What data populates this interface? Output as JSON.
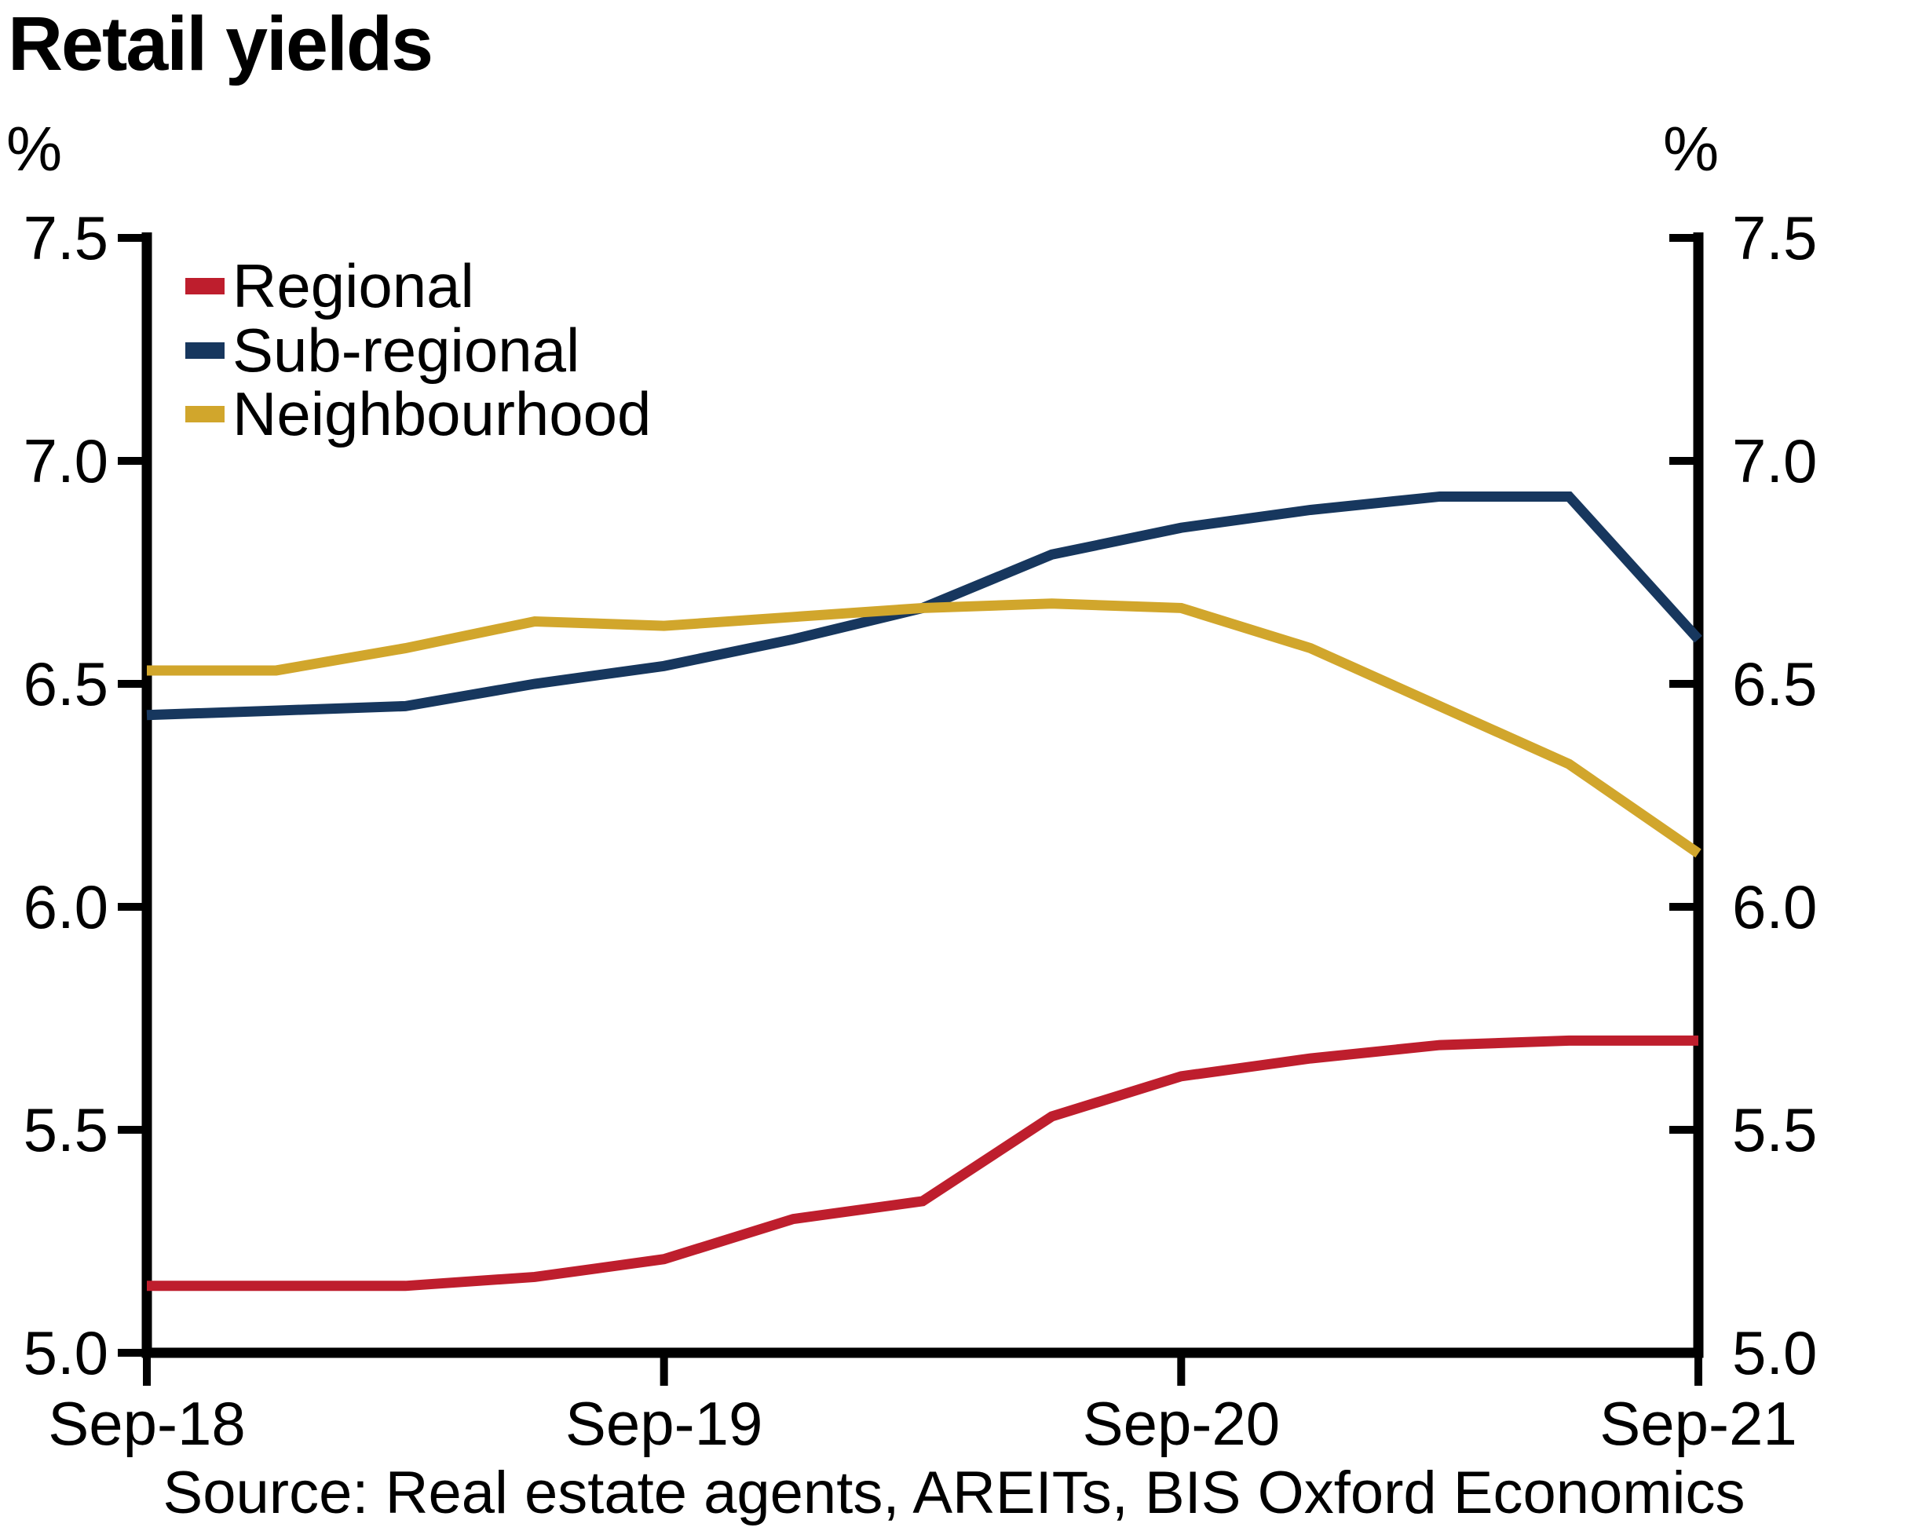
{
  "title": "Retail yields",
  "axis_units": {
    "left": "%",
    "right": "%"
  },
  "legend": [
    {
      "label": "Regional",
      "color": "#BE1E2D"
    },
    {
      "label": "Sub-regional",
      "color": "#17375E"
    },
    {
      "label": "Neighbourhood",
      "color": "#D1A62C"
    }
  ],
  "source": "Source: Real estate agents, AREITs, BIS Oxford Economics",
  "colors": {
    "axis": "#000000",
    "text": "#000000",
    "background": "#ffffff"
  },
  "chart_data": {
    "type": "line",
    "title": "Retail yields",
    "xlabel": "",
    "ylabel": "%",
    "grid": false,
    "legend_position": "top-left",
    "ylim": [
      5.0,
      7.5
    ],
    "y_ticks": [
      5.0,
      5.5,
      6.0,
      6.5,
      7.0,
      7.5
    ],
    "x": [
      "Sep-18",
      "Dec-18",
      "Mar-19",
      "Jun-19",
      "Sep-19",
      "Dec-19",
      "Mar-20",
      "Jun-20",
      "Sep-20",
      "Dec-20",
      "Mar-21",
      "Jun-21",
      "Sep-21"
    ],
    "x_tick_labels": [
      "Sep-18",
      "Sep-19",
      "Sep-20",
      "Sep-21"
    ],
    "x_tick_positions": [
      0,
      4,
      8,
      12
    ],
    "series": [
      {
        "name": "Regional",
        "color": "#BE1E2D",
        "values": [
          5.15,
          5.15,
          5.15,
          5.17,
          5.21,
          5.3,
          5.34,
          5.53,
          5.62,
          5.66,
          5.69,
          5.7,
          5.7
        ]
      },
      {
        "name": "Sub-regional",
        "color": "#17375E",
        "values": [
          6.43,
          6.44,
          6.45,
          6.5,
          6.54,
          6.6,
          6.67,
          6.79,
          6.85,
          6.89,
          6.92,
          6.92,
          6.6
        ]
      },
      {
        "name": "Neighbourhood",
        "color": "#D1A62C",
        "values": [
          6.53,
          6.53,
          6.58,
          6.64,
          6.63,
          6.65,
          6.67,
          6.68,
          6.67,
          6.58,
          6.45,
          6.32,
          6.12
        ]
      }
    ]
  }
}
